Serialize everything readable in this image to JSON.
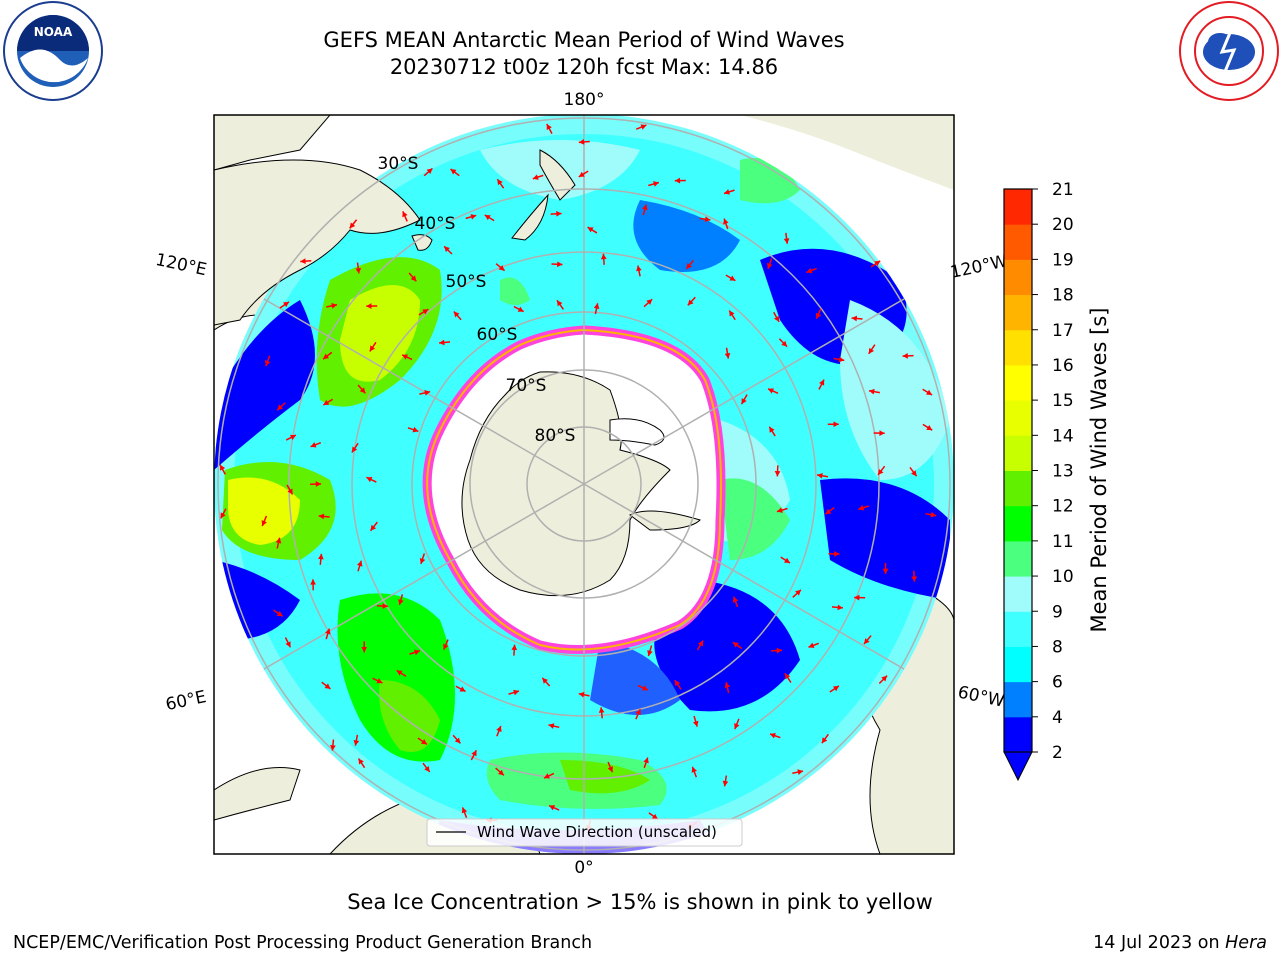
{
  "title": {
    "line1": "GEFS MEAN Antarctic Mean Period of Wind Waves",
    "line2": "20230712 t00z 120h fcst   Max: 14.86"
  },
  "map": {
    "lon_labels": {
      "top": "180°",
      "bottom": "0°",
      "upper_left": "120°E",
      "upper_right": "120°W",
      "lower_left": "60°E",
      "lower_right": "60°W"
    },
    "lat_labels": [
      "30°S",
      "40°S",
      "50°S",
      "60°S",
      "70°S",
      "80°S"
    ],
    "legend": "Wind Wave Direction (unscaled)",
    "colors": {
      "land": "#eeeedc",
      "ice_free": "#ffffff",
      "wave_blue": "#0000ff",
      "wave_cyan": "#00ffff",
      "wave_light": "#9ffcfb",
      "wave_green": "#00ff00",
      "wave_yellow": "#ffff00",
      "arrow": "#ff0000",
      "ice": "#ff44dd"
    }
  },
  "colorbar": {
    "label": "Mean Period of Wind Waves [s]",
    "ticks": [
      "2",
      "4",
      "6",
      "8",
      "9",
      "10",
      "11",
      "12",
      "13",
      "14",
      "15",
      "16",
      "17",
      "18",
      "19",
      "20",
      "21"
    ],
    "colors": [
      "#0000ff",
      "#0080ff",
      "#00ffff",
      "#40ffff",
      "#9ffcfb",
      "#4bff7f",
      "#00ff00",
      "#60f000",
      "#c8ff00",
      "#e8ff00",
      "#ffff00",
      "#ffe000",
      "#ffb400",
      "#ff8c00",
      "#ff5a00",
      "#ff2800",
      "#ff0000"
    ]
  },
  "note": "Sea Ice Concentration > 15% is shown in pink to yellow",
  "footer": {
    "left": "NCEP/EMC/Verification Post Processing Product Generation Branch",
    "right_prefix": "14 Jul 2023 on ",
    "right_italic": "Hera"
  }
}
